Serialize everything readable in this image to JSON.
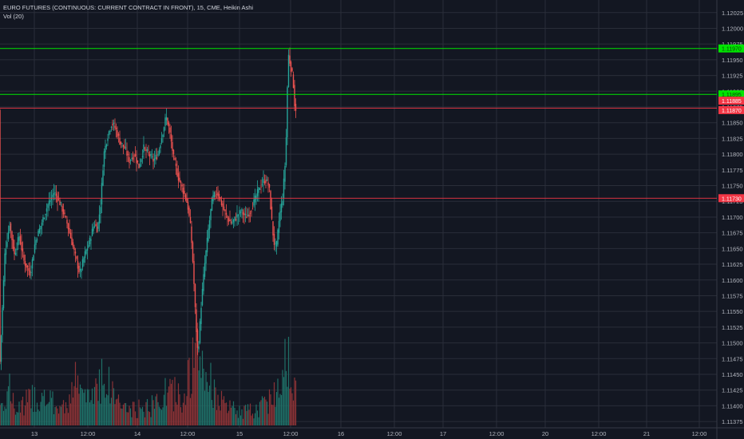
{
  "legend": {
    "line1": "EURO FUTURES (CONTINUOUS: CURRENT CONTRACT IN FRONT), 15, CME, Heikin Ashi",
    "line2": "Vol (20)"
  },
  "colors": {
    "background": "#131722",
    "grid": "#2a2e39",
    "up": "#26a69a",
    "down": "#ef5350",
    "upVol": "#1f6f67",
    "downVol": "#8a3236",
    "hline_green": "#00e600",
    "hline_red": "#f23645",
    "axisText": "#b2b5be",
    "frame": "#ffffff"
  },
  "chart_data": {
    "type": "candlestick",
    "style": "Heikin Ashi",
    "symbol": "EURO FUTURES (CONTINUOUS: CURRENT CONTRACT IN FRONT)",
    "interval": "15",
    "exchange": "CME",
    "grid": true,
    "ylim": [
      1.11365,
      1.12045
    ],
    "y_ticks": [
      "1.12025",
      "1.12000",
      "1.11975",
      "1.11950",
      "1.11925",
      "1.11900",
      "1.11875",
      "1.11850",
      "1.11825",
      "1.11800",
      "1.11775",
      "1.11750",
      "1.11725",
      "1.11700",
      "1.11675",
      "1.11650",
      "1.11625",
      "1.11600",
      "1.11575",
      "1.11550",
      "1.11525",
      "1.11500",
      "1.11475",
      "1.11450",
      "1.11425",
      "1.11400",
      "1.11375"
    ],
    "x_ticks": [
      "13",
      "12:00",
      "14",
      "12:00",
      "15",
      "12:00",
      "16",
      "12:00",
      "17",
      "12:00",
      "20",
      "12:00",
      "21",
      "12:00"
    ],
    "price_path": [
      {
        "t": 0,
        "p": 1.1147
      },
      {
        "t": 6,
        "p": 1.1164
      },
      {
        "t": 12,
        "p": 1.1169
      },
      {
        "t": 18,
        "p": 1.1164
      },
      {
        "t": 24,
        "p": 1.1167
      },
      {
        "t": 30,
        "p": 1.1163
      },
      {
        "t": 38,
        "p": 1.1161
      },
      {
        "t": 44,
        "p": 1.1166
      },
      {
        "t": 52,
        "p": 1.1169
      },
      {
        "t": 60,
        "p": 1.1172
      },
      {
        "t": 68,
        "p": 1.1174
      },
      {
        "t": 76,
        "p": 1.1172
      },
      {
        "t": 84,
        "p": 1.1169
      },
      {
        "t": 90,
        "p": 1.1166
      },
      {
        "t": 96,
        "p": 1.1163
      },
      {
        "t": 100,
        "p": 1.1161
      },
      {
        "t": 106,
        "p": 1.1164
      },
      {
        "t": 112,
        "p": 1.1166
      },
      {
        "t": 118,
        "p": 1.1169
      },
      {
        "t": 122,
        "p": 1.1168
      },
      {
        "t": 126,
        "p": 1.1172
      },
      {
        "t": 130,
        "p": 1.118
      },
      {
        "t": 135,
        "p": 1.1183
      },
      {
        "t": 140,
        "p": 1.1185
      },
      {
        "t": 145,
        "p": 1.1184
      },
      {
        "t": 150,
        "p": 1.1182
      },
      {
        "t": 156,
        "p": 1.1181
      },
      {
        "t": 162,
        "p": 1.1179
      },
      {
        "t": 168,
        "p": 1.118
      },
      {
        "t": 174,
        "p": 1.1178
      },
      {
        "t": 180,
        "p": 1.1181
      },
      {
        "t": 186,
        "p": 1.118
      },
      {
        "t": 192,
        "p": 1.1179
      },
      {
        "t": 198,
        "p": 1.118
      },
      {
        "t": 203,
        "p": 1.1183
      },
      {
        "t": 208,
        "p": 1.1186
      },
      {
        "t": 212,
        "p": 1.1184
      },
      {
        "t": 218,
        "p": 1.1179
      },
      {
        "t": 224,
        "p": 1.1176
      },
      {
        "t": 230,
        "p": 1.1174
      },
      {
        "t": 235,
        "p": 1.1172
      },
      {
        "t": 239,
        "p": 1.1168
      },
      {
        "t": 242,
        "p": 1.1162
      },
      {
        "t": 245,
        "p": 1.1154
      },
      {
        "t": 248,
        "p": 1.1148
      },
      {
        "t": 252,
        "p": 1.1156
      },
      {
        "t": 256,
        "p": 1.1162
      },
      {
        "t": 261,
        "p": 1.1168
      },
      {
        "t": 266,
        "p": 1.1173
      },
      {
        "t": 272,
        "p": 1.1174
      },
      {
        "t": 278,
        "p": 1.1172
      },
      {
        "t": 284,
        "p": 1.117
      },
      {
        "t": 290,
        "p": 1.1169
      },
      {
        "t": 296,
        "p": 1.117
      },
      {
        "t": 302,
        "p": 1.1171
      },
      {
        "t": 308,
        "p": 1.117
      },
      {
        "t": 314,
        "p": 1.1171
      },
      {
        "t": 320,
        "p": 1.1173
      },
      {
        "t": 326,
        "p": 1.1175
      },
      {
        "t": 332,
        "p": 1.1176
      },
      {
        "t": 337,
        "p": 1.1175
      },
      {
        "t": 340,
        "p": 1.117
      },
      {
        "t": 343,
        "p": 1.1166
      },
      {
        "t": 346,
        "p": 1.1165
      },
      {
        "t": 350,
        "p": 1.117
      },
      {
        "t": 354,
        "p": 1.1173
      },
      {
        "t": 358,
        "p": 1.118
      },
      {
        "t": 361,
        "p": 1.1196
      },
      {
        "t": 364,
        "p": 1.1194
      },
      {
        "t": 367,
        "p": 1.1192
      },
      {
        "t": 369,
        "p": 1.1188
      },
      {
        "t": 371,
        "p": 1.1187
      }
    ],
    "volume_profile": [
      {
        "t": 0,
        "v": 0.2
      },
      {
        "t": 10,
        "v": 0.4
      },
      {
        "t": 20,
        "v": 0.15
      },
      {
        "t": 40,
        "v": 0.3
      },
      {
        "t": 60,
        "v": 0.25
      },
      {
        "t": 80,
        "v": 0.18
      },
      {
        "t": 95,
        "v": 0.45
      },
      {
        "t": 110,
        "v": 0.25
      },
      {
        "t": 128,
        "v": 0.55
      },
      {
        "t": 140,
        "v": 0.35
      },
      {
        "t": 160,
        "v": 0.15
      },
      {
        "t": 190,
        "v": 0.2
      },
      {
        "t": 210,
        "v": 0.35
      },
      {
        "t": 230,
        "v": 0.3
      },
      {
        "t": 246,
        "v": 0.75
      },
      {
        "t": 260,
        "v": 0.5
      },
      {
        "t": 280,
        "v": 0.2
      },
      {
        "t": 300,
        "v": 0.15
      },
      {
        "t": 320,
        "v": 0.15
      },
      {
        "t": 340,
        "v": 0.3
      },
      {
        "t": 350,
        "v": 0.4
      },
      {
        "t": 359,
        "v": 1.0
      },
      {
        "t": 364,
        "v": 0.5
      },
      {
        "t": 371,
        "v": 0.3
      }
    ],
    "horizontal_lines": [
      {
        "price": 1.11968,
        "color": "green",
        "label": "1.11970"
      },
      {
        "price": 1.11895,
        "color": "green",
        "label": "1.11895"
      },
      {
        "price": 1.11873,
        "color": "red",
        "label": ""
      },
      {
        "price": 1.1173,
        "color": "red",
        "label": "1.11730"
      }
    ],
    "price_labels": [
      {
        "price": 1.11885,
        "label": "1.11885"
      },
      {
        "price": 1.1187,
        "label": "1.11870"
      }
    ]
  }
}
